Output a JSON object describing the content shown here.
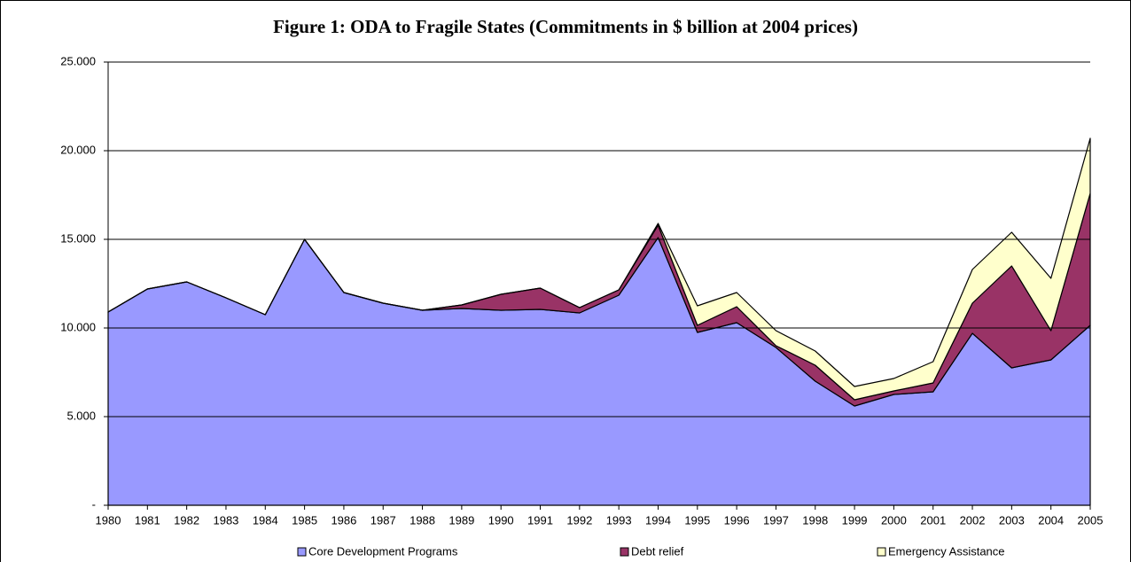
{
  "chart_data": {
    "type": "stacked-area",
    "title": "Figure 1:  ODA to Fragile States (Commitments in $ billion at 2004 prices)",
    "categories": [
      "1980",
      "1981",
      "1982",
      "1983",
      "1984",
      "1985",
      "1986",
      "1987",
      "1988",
      "1989",
      "1990",
      "1991",
      "1992",
      "1993",
      "1994",
      "1995",
      "1996",
      "1997",
      "1998",
      "1999",
      "2000",
      "2001",
      "2002",
      "2003",
      "2004",
      "2005"
    ],
    "series": [
      {
        "name": "Core Development Programs",
        "color": "#9999ff",
        "values": [
          10.9,
          12.2,
          12.6,
          11.7,
          10.75,
          15.0,
          12.0,
          11.4,
          11.0,
          11.1,
          11.0,
          11.05,
          10.85,
          11.85,
          15.1,
          9.75,
          10.3,
          8.9,
          7.0,
          5.6,
          6.25,
          6.4,
          9.7,
          7.75,
          8.2,
          10.15
        ]
      },
      {
        "name": "Debt relief",
        "color": "#993366",
        "values": [
          0,
          0,
          0,
          0,
          0,
          0,
          0,
          0,
          0,
          0.2,
          0.9,
          1.2,
          0.3,
          0.3,
          0.7,
          0.4,
          0.9,
          0.1,
          0.9,
          0.35,
          0.2,
          0.5,
          1.7,
          5.75,
          1.65,
          7.45
        ]
      },
      {
        "name": "Emergency Assistance",
        "color": "#ffffcc",
        "values": [
          0,
          0,
          0,
          0,
          0,
          0,
          0,
          0,
          0,
          0,
          0,
          0,
          0,
          0,
          0.1,
          1.1,
          0.8,
          0.85,
          0.8,
          0.75,
          0.7,
          1.2,
          1.9,
          1.9,
          2.95,
          3.1
        ]
      }
    ],
    "ylim": [
      0,
      25
    ],
    "yticks": [
      {
        "value": 0,
        "label": "-"
      },
      {
        "value": 5,
        "label": "5.000"
      },
      {
        "value": 10,
        "label": "10.000"
      },
      {
        "value": 15,
        "label": "15.000"
      },
      {
        "value": 20,
        "label": "20.000"
      },
      {
        "value": 25,
        "label": "25.000"
      }
    ],
    "grid": true
  }
}
